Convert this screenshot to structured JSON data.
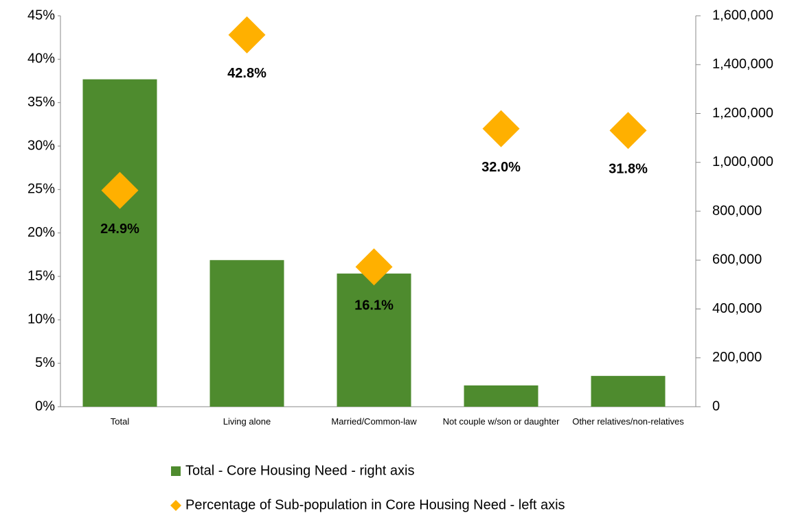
{
  "chart_data": {
    "type": "bar",
    "categories": [
      "Total",
      "Living alone",
      "Married/Common-law",
      "Not couple w/son or daughter",
      "Other relatives/non-relatives"
    ],
    "series": [
      {
        "name": "Total - Core Housing Need - right axis",
        "type": "bar",
        "axis": "y2",
        "color": "#4e8b2e",
        "values": [
          1340000,
          600000,
          545000,
          87000,
          126000
        ]
      },
      {
        "name": "Percentage of Sub-population in Core Housing Need - left axis",
        "type": "scatter",
        "color": "#ffb000",
        "values": [
          24.9,
          42.8,
          16.1,
          32.0,
          31.8
        ],
        "value_labels": [
          "24.9%",
          "42.8%",
          "16.1%",
          "32.0%",
          "31.8%"
        ]
      }
    ],
    "ylim": [
      0,
      45
    ],
    "yticks": [
      {
        "value": 0,
        "label": "0%"
      },
      {
        "value": 5,
        "label": "5%"
      },
      {
        "value": 10,
        "label": "10%"
      },
      {
        "value": 15,
        "label": "15%"
      },
      {
        "value": 20,
        "label": "20%"
      },
      {
        "value": 25,
        "label": "25%"
      },
      {
        "value": 30,
        "label": "30%"
      },
      {
        "value": 35,
        "label": "35%"
      },
      {
        "value": 40,
        "label": "40%"
      },
      {
        "value": 45,
        "label": "45%"
      }
    ],
    "y2lim": [
      0,
      1600000
    ],
    "y2ticks": [
      0,
      {
        "value": 200000,
        "label": "200,000"
      },
      {
        "value": 400000,
        "label": "400,000"
      },
      {
        "value": 600000,
        "label": "600,000"
      },
      {
        "value": 800000,
        "label": "800,000"
      },
      {
        "value": 1000000,
        "label": "1,000,000"
      },
      {
        "value": 1200000,
        "label": "1,200,000"
      },
      {
        "value": 1400000,
        "label": "1,400,000"
      },
      {
        "value": 1600000,
        "label": "1,600,000"
      }
    ],
    "legend": "bottom"
  }
}
